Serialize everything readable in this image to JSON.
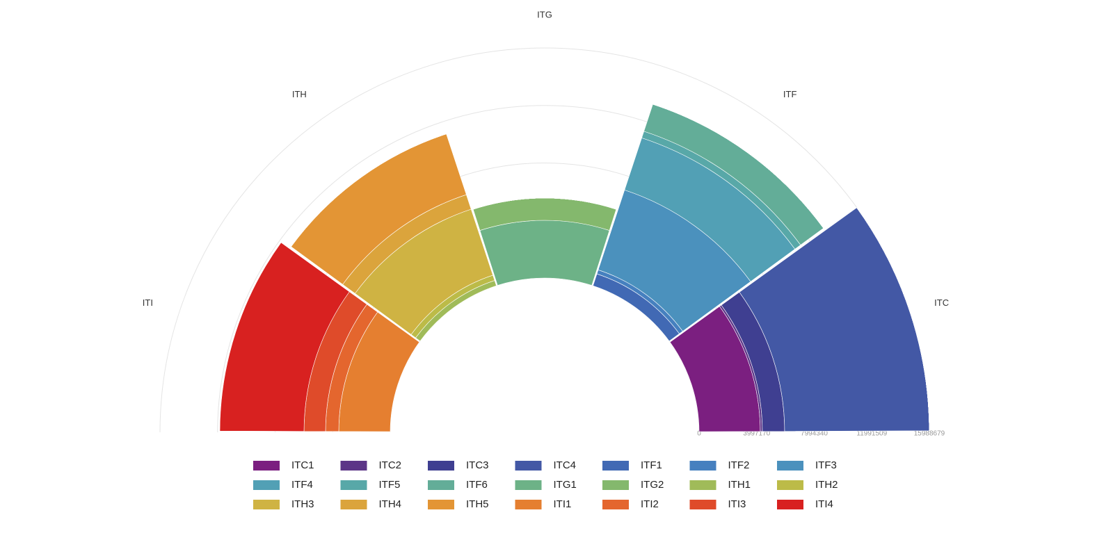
{
  "chart_data": {
    "type": "polar-stacked-bar",
    "categories": [
      "ITC",
      "ITF",
      "ITG",
      "ITH",
      "ITI"
    ],
    "rlim": [
      0,
      15988679
    ],
    "rticks": [
      0,
      3997170,
      7994340,
      11991509,
      15988679
    ],
    "series": [
      {
        "name": "ITC1",
        "color": "#7b1f80",
        "values": [
          4250000,
          0,
          0,
          0,
          0
        ]
      },
      {
        "name": "ITC2",
        "color": "#5c3587",
        "values": [
          145000,
          0,
          0,
          0,
          0
        ]
      },
      {
        "name": "ITC3",
        "color": "#3f3f91",
        "values": [
          1546000,
          0,
          0,
          0,
          0
        ]
      },
      {
        "name": "ITC4",
        "color": "#4358a5",
        "values": [
          10047000,
          0,
          0,
          0,
          0
        ]
      },
      {
        "name": "ITF1",
        "color": "#4169b4",
        "values": [
          0,
          870000,
          0,
          0,
          0
        ]
      },
      {
        "name": "ITF2",
        "color": "#4680bf",
        "values": [
          0,
          290000,
          0,
          0,
          0
        ]
      },
      {
        "name": "ITF3",
        "color": "#4b91bd",
        "values": [
          0,
          5845000,
          0,
          0,
          0
        ]
      },
      {
        "name": "ITF4",
        "color": "#52a0b5",
        "values": [
          0,
          3816000,
          0,
          0,
          0
        ]
      },
      {
        "name": "ITF5",
        "color": "#58a8a8",
        "values": [
          0,
          483000,
          0,
          0,
          0
        ]
      },
      {
        "name": "ITF6",
        "color": "#63ad98",
        "values": [
          0,
          1980000,
          0,
          0,
          0
        ]
      },
      {
        "name": "ITG1",
        "color": "#6db287",
        "values": [
          0,
          0,
          4009000,
          0,
          0
        ]
      },
      {
        "name": "ITG2",
        "color": "#84b86d",
        "values": [
          0,
          0,
          1546000,
          0,
          0
        ]
      },
      {
        "name": "ITH1",
        "color": "#a0bb59",
        "values": [
          0,
          0,
          0,
          386000,
          0
        ]
      },
      {
        "name": "ITH2",
        "color": "#bcbb48",
        "values": [
          0,
          0,
          0,
          386000,
          0
        ]
      },
      {
        "name": "ITH3",
        "color": "#cfb343",
        "values": [
          0,
          0,
          0,
          4830000,
          0
        ]
      },
      {
        "name": "ITH4",
        "color": "#dba43c",
        "values": [
          0,
          0,
          0,
          1063000,
          0
        ]
      },
      {
        "name": "ITH5",
        "color": "#e39535",
        "values": [
          0,
          0,
          0,
          4444000,
          0
        ]
      },
      {
        "name": "ITI1",
        "color": "#e57f30",
        "values": [
          0,
          0,
          0,
          0,
          3575000
        ]
      },
      {
        "name": "ITI2",
        "color": "#e4662e",
        "values": [
          0,
          0,
          0,
          0,
          918000
        ]
      },
      {
        "name": "ITI3",
        "color": "#df4b2a",
        "values": [
          0,
          0,
          0,
          0,
          1497000
        ]
      },
      {
        "name": "ITI4",
        "color": "#d82120",
        "values": [
          0,
          0,
          0,
          0,
          5845000
        ]
      }
    ]
  }
}
